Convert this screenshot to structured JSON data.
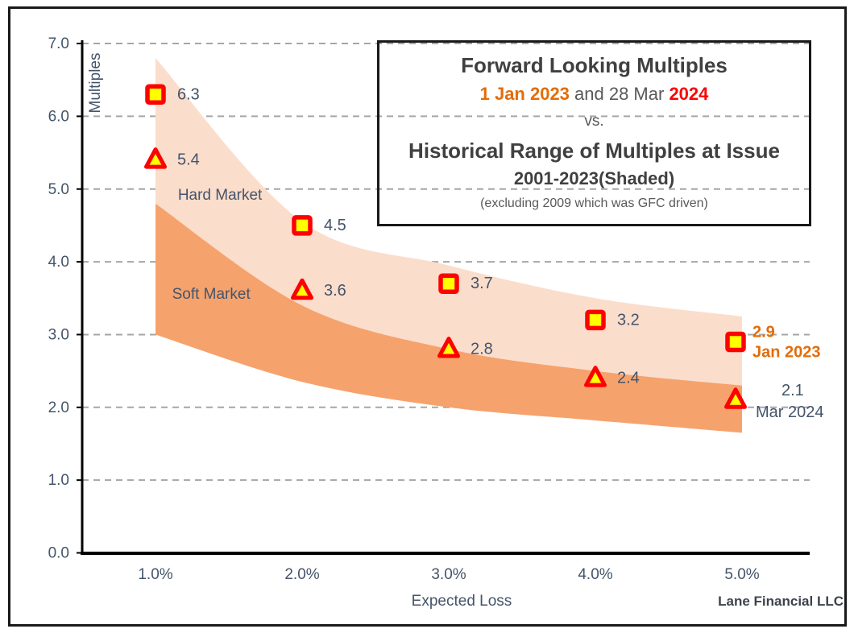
{
  "title_box": {
    "title": "Forward Looking Multiples",
    "date1": "1 Jan 2023",
    "date_mid": " and 28 Mar ",
    "date2": "2024",
    "vs": "vs.",
    "subtitle": "Historical Range of Multiples at Issue",
    "range_label": "2001-2023(Shaded)",
    "note": "(excluding 2009 which was GFC driven)"
  },
  "brand": "Lane Financial LLC",
  "chart_data": {
    "type": "scatter",
    "title": "Forward Looking Multiples 1 Jan 2023 and 28 Mar 2024 vs. Historical Range of Multiples at Issue 2001-2023 (Shaded), excluding 2009 which was GFC driven",
    "xlabel": "Expected Loss",
    "ylabel": "Multiples",
    "x_categories": [
      "1.0%",
      "2.0%",
      "3.0%",
      "4.0%",
      "5.0%"
    ],
    "x_values": [
      1,
      2,
      3,
      4,
      5
    ],
    "y_ticks": [
      "0.0",
      "1.0",
      "2.0",
      "3.0",
      "4.0",
      "5.0",
      "6.0",
      "7.0"
    ],
    "ylim": [
      0,
      7
    ],
    "grid": "horizontal-dashed",
    "gridline_color": "#a6a6a6",
    "label_color": "#44546a",
    "series": [
      {
        "name": "Jan 2023",
        "marker": "square",
        "marker_fill": "#ffff00",
        "marker_stroke": "#ff0000",
        "values": [
          6.3,
          4.5,
          3.7,
          3.2,
          2.9
        ],
        "labels": [
          "6.3",
          "4.5",
          "3.7",
          "3.2",
          "2.9"
        ],
        "last_point_annotation": [
          "2.9",
          "Jan 2023"
        ],
        "annotation_color": "#e36c09",
        "annotation_bold": true
      },
      {
        "name": "Mar 2024",
        "marker": "triangle",
        "marker_fill": "#ffff00",
        "marker_stroke": "#ff0000",
        "values": [
          5.4,
          3.6,
          2.8,
          2.4,
          2.1
        ],
        "labels": [
          "5.4",
          "3.6",
          "2.8",
          "2.4",
          "2.1"
        ],
        "last_point_annotation": [
          "2.1",
          "Mar 2024"
        ],
        "annotation_color": "#44546a",
        "annotation_bold": false
      }
    ],
    "bands": [
      {
        "name": "Hard Market",
        "color": "#fbddcc",
        "x": [
          1,
          2,
          3,
          4,
          5
        ],
        "upper": [
          6.8,
          4.55,
          3.95,
          3.5,
          3.25
        ],
        "lower": [
          4.8,
          3.4,
          2.8,
          2.5,
          2.3
        ],
        "label_pos": {
          "x": 1.44,
          "y": 4.92
        }
      },
      {
        "name": "Soft Market",
        "color": "#f6a26d",
        "x": [
          1,
          2,
          3,
          4,
          5
        ],
        "upper": [
          4.8,
          3.4,
          2.8,
          2.5,
          2.3
        ],
        "lower": [
          3.0,
          2.35,
          2.0,
          1.82,
          1.65
        ],
        "label_pos": {
          "x": 1.38,
          "y": 3.56
        }
      }
    ]
  }
}
